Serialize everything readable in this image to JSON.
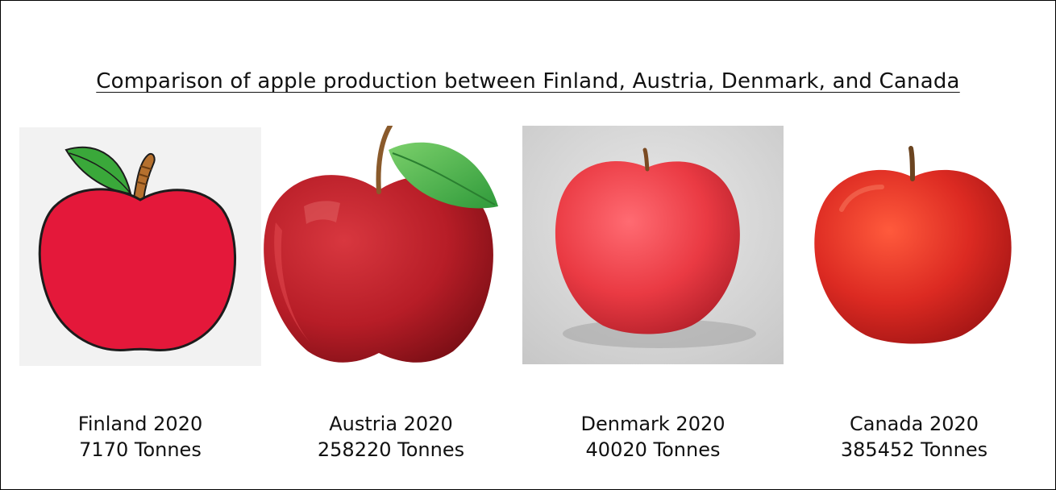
{
  "chart_data": {
    "type": "pictogram",
    "title": "Comparison of apple production between Finland, Austria, Denmark, and Canada",
    "year": "2020",
    "unit": "Tonnes",
    "categories": [
      "Finland",
      "Austria",
      "Denmark",
      "Canada"
    ],
    "values": [
      7170,
      258220,
      40020,
      385452
    ],
    "labels": [
      {
        "country": "Finland 2020",
        "value": "7170 Tonnes"
      },
      {
        "country": "Austria 2020",
        "value": "258220 Tonnes"
      },
      {
        "country": "Denmark 2020",
        "value": "40020 Tonnes"
      },
      {
        "country": "Canada 2020",
        "value": "385452 Tonnes"
      }
    ]
  },
  "icons": [
    "cartoon-apple-icon",
    "glossy-apple-icon",
    "photo-apple-icon",
    "photo-apple-icon"
  ],
  "colors": {
    "apple_red": "#e4183a",
    "leaf_green": "#3fb33f",
    "stem_brown": "#8a5a2b"
  }
}
